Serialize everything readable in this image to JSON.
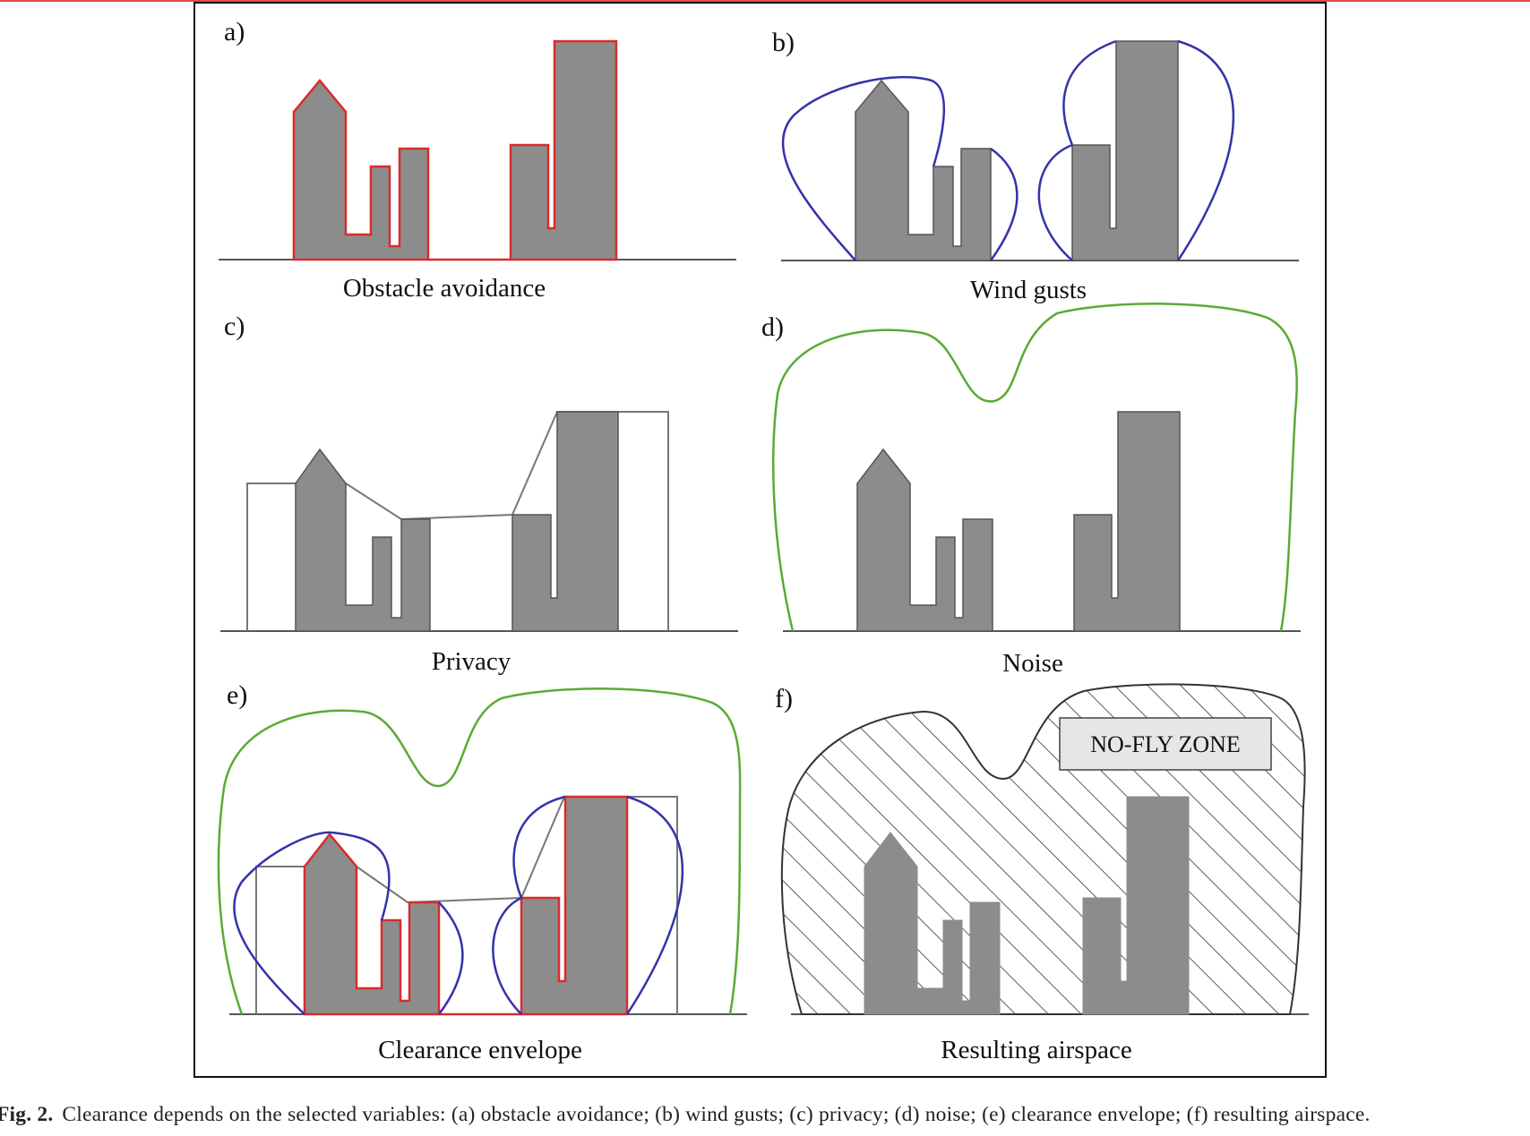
{
  "panels": {
    "a": {
      "letter": "a)",
      "title": "Obstacle avoidance"
    },
    "b": {
      "letter": "b)",
      "title": "Wind gusts"
    },
    "c": {
      "letter": "c)",
      "title": "Privacy"
    },
    "d": {
      "letter": "d)",
      "title": "Noise"
    },
    "e": {
      "letter": "e)",
      "title": "Clearance envelope"
    },
    "f": {
      "letter": "f)",
      "title": "Resulting airspace",
      "zone_label": "NO-FLY ZONE"
    }
  },
  "caption": {
    "label": "Fig. 2.",
    "text": "Clearance depends on the selected variables: (a) obstacle avoidance; (b) wind gusts; (c) privacy; (d) noise; (e) clearance envelope; (f) resulting airspace."
  },
  "colors": {
    "building": "#8c8c8d",
    "obstacle_outline": "#d92b2b",
    "wind_outline": "#3333aa",
    "noise_outline": "#5aaa35",
    "privacy_outline": "#777777",
    "frame": "#111111"
  }
}
